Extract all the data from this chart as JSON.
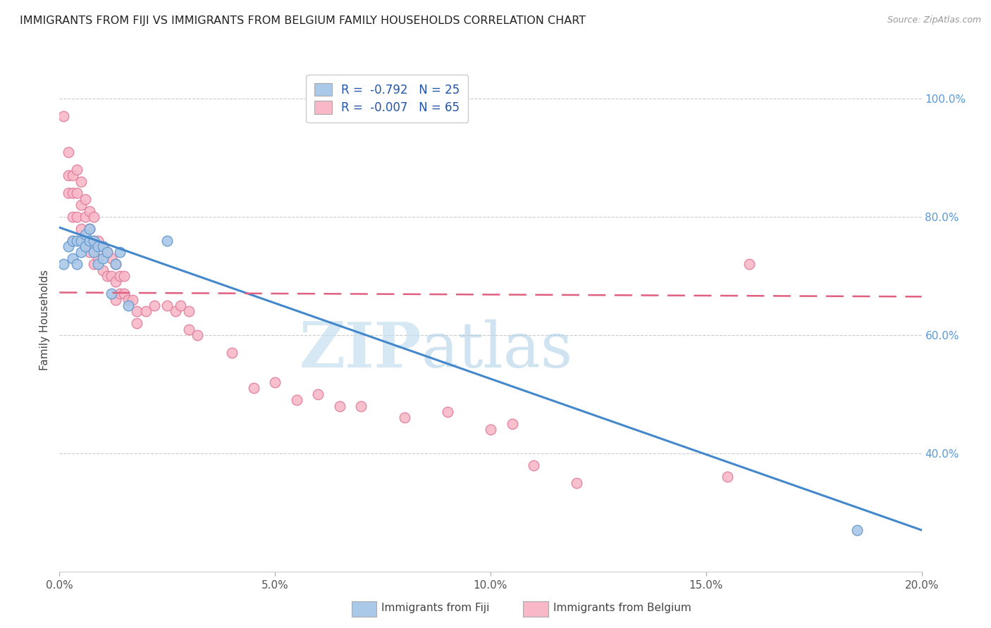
{
  "title": "IMMIGRANTS FROM FIJI VS IMMIGRANTS FROM BELGIUM FAMILY HOUSEHOLDS CORRELATION CHART",
  "source": "Source: ZipAtlas.com",
  "ylabel": "Family Households",
  "xlim": [
    0.0,
    0.2
  ],
  "ylim": [
    0.2,
    1.05
  ],
  "xtick_labels": [
    "0.0%",
    "5.0%",
    "10.0%",
    "15.0%",
    "20.0%"
  ],
  "xtick_vals": [
    0.0,
    0.05,
    0.1,
    0.15,
    0.2
  ],
  "ytick_labels_right": [
    "40.0%",
    "60.0%",
    "80.0%",
    "100.0%"
  ],
  "ytick_vals": [
    0.4,
    0.6,
    0.8,
    1.0
  ],
  "grid_color": "#cccccc",
  "bg_color": "#ffffff",
  "fiji_color": "#aac8e8",
  "belgium_color": "#f8b8c8",
  "fiji_edge_color": "#6699cc",
  "belgium_edge_color": "#e080a0",
  "fiji_line_color": "#4488cc",
  "belgium_line_color": "#e06080",
  "legend_R_fiji": "-0.792",
  "legend_N_fiji": "25",
  "legend_R_belgium": "-0.007",
  "legend_N_belgium": "65",
  "watermark_zip": "ZIP",
  "watermark_atlas": "atlas",
  "fiji_scatter_x": [
    0.001,
    0.002,
    0.003,
    0.003,
    0.004,
    0.004,
    0.005,
    0.005,
    0.006,
    0.006,
    0.007,
    0.007,
    0.008,
    0.008,
    0.009,
    0.009,
    0.01,
    0.01,
    0.011,
    0.012,
    0.013,
    0.014,
    0.016,
    0.025,
    0.185
  ],
  "fiji_scatter_y": [
    0.72,
    0.75,
    0.73,
    0.76,
    0.76,
    0.72,
    0.76,
    0.74,
    0.77,
    0.75,
    0.78,
    0.76,
    0.76,
    0.74,
    0.75,
    0.72,
    0.75,
    0.73,
    0.74,
    0.67,
    0.72,
    0.74,
    0.65,
    0.76,
    0.27
  ],
  "belgium_scatter_x": [
    0.001,
    0.002,
    0.002,
    0.002,
    0.003,
    0.003,
    0.003,
    0.003,
    0.004,
    0.004,
    0.004,
    0.005,
    0.005,
    0.005,
    0.006,
    0.006,
    0.006,
    0.007,
    0.007,
    0.007,
    0.008,
    0.008,
    0.008,
    0.009,
    0.009,
    0.01,
    0.01,
    0.011,
    0.011,
    0.012,
    0.012,
    0.013,
    0.013,
    0.013,
    0.014,
    0.014,
    0.015,
    0.015,
    0.016,
    0.017,
    0.018,
    0.018,
    0.02,
    0.022,
    0.025,
    0.027,
    0.028,
    0.03,
    0.03,
    0.032,
    0.04,
    0.045,
    0.05,
    0.055,
    0.06,
    0.065,
    0.07,
    0.08,
    0.09,
    0.1,
    0.105,
    0.11,
    0.12,
    0.155,
    0.16
  ],
  "belgium_scatter_y": [
    0.97,
    0.91,
    0.87,
    0.84,
    0.87,
    0.84,
    0.8,
    0.76,
    0.88,
    0.84,
    0.8,
    0.86,
    0.82,
    0.78,
    0.83,
    0.8,
    0.76,
    0.81,
    0.78,
    0.74,
    0.8,
    0.76,
    0.72,
    0.76,
    0.73,
    0.75,
    0.71,
    0.74,
    0.7,
    0.73,
    0.7,
    0.72,
    0.69,
    0.66,
    0.7,
    0.67,
    0.7,
    0.67,
    0.66,
    0.66,
    0.64,
    0.62,
    0.64,
    0.65,
    0.65,
    0.64,
    0.65,
    0.64,
    0.61,
    0.6,
    0.57,
    0.51,
    0.52,
    0.49,
    0.5,
    0.48,
    0.48,
    0.46,
    0.47,
    0.44,
    0.45,
    0.38,
    0.35,
    0.36,
    0.72
  ],
  "fiji_line_x": [
    0.0,
    0.2
  ],
  "fiji_line_y": [
    0.782,
    0.27
  ],
  "belgium_line_x": [
    0.0,
    0.2
  ],
  "belgium_line_y": [
    0.672,
    0.665
  ]
}
